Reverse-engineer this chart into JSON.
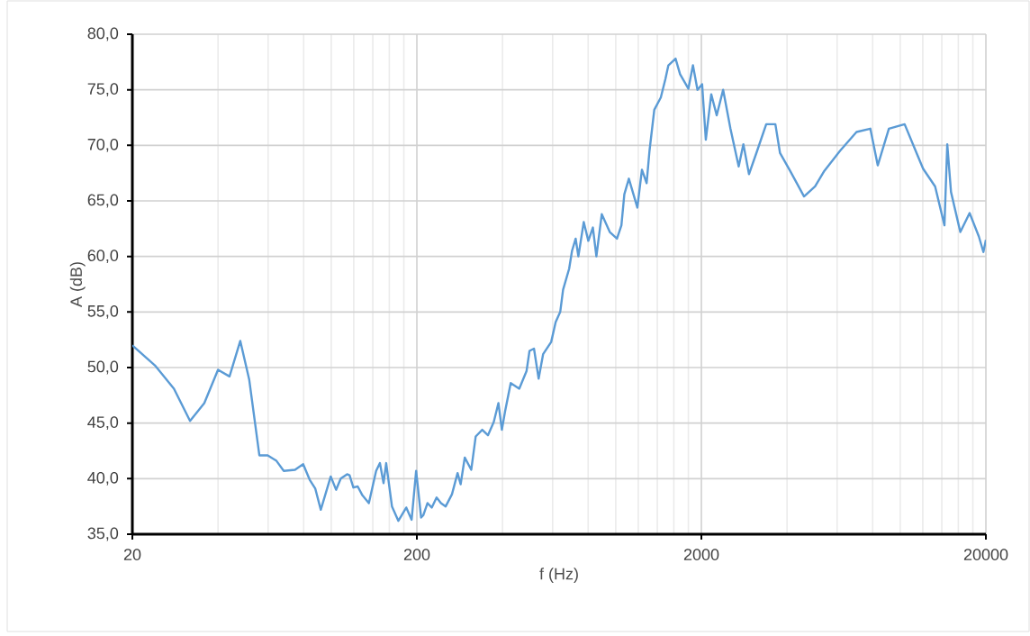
{
  "chart_data": {
    "type": "line",
    "xlabel": "f (Hz)",
    "ylabel": "A (dB)",
    "log": "x",
    "grid": true,
    "marker": "none",
    "line_style": "solid",
    "xlim": [
      20,
      20000
    ],
    "xticks": [
      20,
      200,
      2000,
      20000
    ],
    "ylim": [
      35,
      80
    ],
    "yticks": [
      {
        "value": 35,
        "label": "35,0"
      },
      {
        "value": 40,
        "label": "40,0"
      },
      {
        "value": 45,
        "label": "45,0"
      },
      {
        "value": 50,
        "label": "50,0"
      },
      {
        "value": 55,
        "label": "55,0"
      },
      {
        "value": 60,
        "label": "60,0"
      },
      {
        "value": 65,
        "label": "65,0"
      },
      {
        "value": 70,
        "label": "70,0"
      },
      {
        "value": 75,
        "label": "75,0"
      },
      {
        "value": 80,
        "label": "80,0"
      }
    ],
    "series": [
      {
        "color": "#5b9bd5",
        "x": [
          20,
          24,
          28,
          31.9,
          35.8,
          40,
          43.9,
          47.9,
          51.5,
          55.9,
          59.8,
          64.2,
          68.1,
          74.6,
          79.7,
          84,
          87.9,
          91.9,
          99.6,
          104,
          108,
          113.7,
          116,
          119.6,
          123.9,
          128.7,
          135.6,
          143.8,
          148.3,
          152.7,
          156,
          163.5,
          172.2,
          183.6,
          191.7,
          198.8,
          207,
          210.6,
          218,
          225.6,
          234.6,
          243,
          252.5,
          265.7,
          278,
          285,
          294.7,
          310.6,
          322,
          339.4,
          355.5,
          372.6,
          387,
          398,
          408,
          427.4,
          458,
          486,
          497.6,
          516,
          535.8,
          555.5,
          593,
          615,
          638,
          653,
          686,
          702,
          723,
          739,
          772,
          801,
          831,
          855,
          893,
          953,
          1010,
          1047,
          1072,
          1112,
          1191,
          1236,
          1284,
          1314,
          1366,
          1440,
          1496,
          1531,
          1623,
          1683,
          1800,
          1868,
          1938,
          2012,
          2073,
          2166,
          2264,
          2385,
          2530,
          2705,
          2810,
          2940,
          3140,
          3380,
          3640,
          3780,
          4100,
          4590,
          5020,
          5410,
          6140,
          7020,
          7850,
          8335,
          9120,
          10360,
          11160,
          12030,
          13260,
          14300,
          14630,
          15080,
          16260,
          17530,
          18890,
          19600,
          20000
        ],
        "values": [
          52.0,
          50.2,
          48.1,
          45.2,
          46.8,
          49.8,
          49.2,
          52.4,
          48.9,
          42.1,
          42.1,
          41.6,
          40.7,
          40.8,
          41.3,
          39.9,
          39.1,
          37.2,
          40.2,
          39.0,
          40.0,
          40.4,
          40.3,
          39.2,
          39.3,
          38.5,
          37.8,
          40.7,
          41.4,
          39.6,
          41.4,
          37.5,
          36.2,
          37.4,
          36.3,
          40.7,
          36.5,
          36.7,
          37.8,
          37.4,
          38.3,
          37.8,
          37.5,
          38.6,
          40.5,
          39.5,
          41.9,
          40.8,
          43.8,
          44.4,
          43.9,
          45.1,
          46.8,
          44.4,
          46.0,
          48.6,
          48.1,
          49.7,
          51.5,
          51.7,
          49.0,
          51.2,
          52.3,
          54.1,
          55.0,
          57.0,
          58.9,
          60.5,
          61.6,
          60.0,
          63.1,
          61.4,
          62.6,
          60.0,
          63.8,
          62.2,
          61.6,
          62.8,
          65.6,
          67.0,
          64.4,
          67.8,
          66.6,
          69.5,
          73.2,
          74.3,
          76.0,
          77.2,
          77.8,
          76.4,
          75.1,
          77.2,
          75.0,
          75.5,
          70.5,
          74.6,
          72.7,
          75.0,
          71.5,
          68.1,
          70.1,
          67.4,
          69.5,
          71.9,
          71.9,
          69.3,
          67.7,
          65.4,
          66.3,
          67.7,
          69.5,
          71.2,
          71.5,
          68.2,
          71.5,
          71.9,
          69.9,
          67.9,
          66.3,
          62.8,
          70.1,
          65.8,
          62.2,
          63.9,
          61.8,
          60.4,
          61.5
        ]
      }
    ]
  }
}
